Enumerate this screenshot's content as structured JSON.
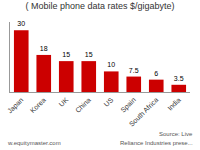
{
  "chart_data": {
    "type": "bar",
    "title": "( Mobile phone data rates $/gigabyte)",
    "categories": [
      "Japan",
      "Korea",
      "UK",
      "China",
      "US",
      "Spain",
      "South Africa",
      "India"
    ],
    "values": [
      30,
      18,
      15,
      15,
      10,
      7.5,
      6,
      3.5
    ],
    "color": "#cc0000",
    "ylim": [
      0,
      34
    ],
    "yticks": [],
    "grid": false,
    "tick_labels": "x",
    "data_labels": true,
    "annotations": [
      "w.equitymaster.com",
      "Source: Live",
      "Reliance Industries prese..."
    ]
  }
}
